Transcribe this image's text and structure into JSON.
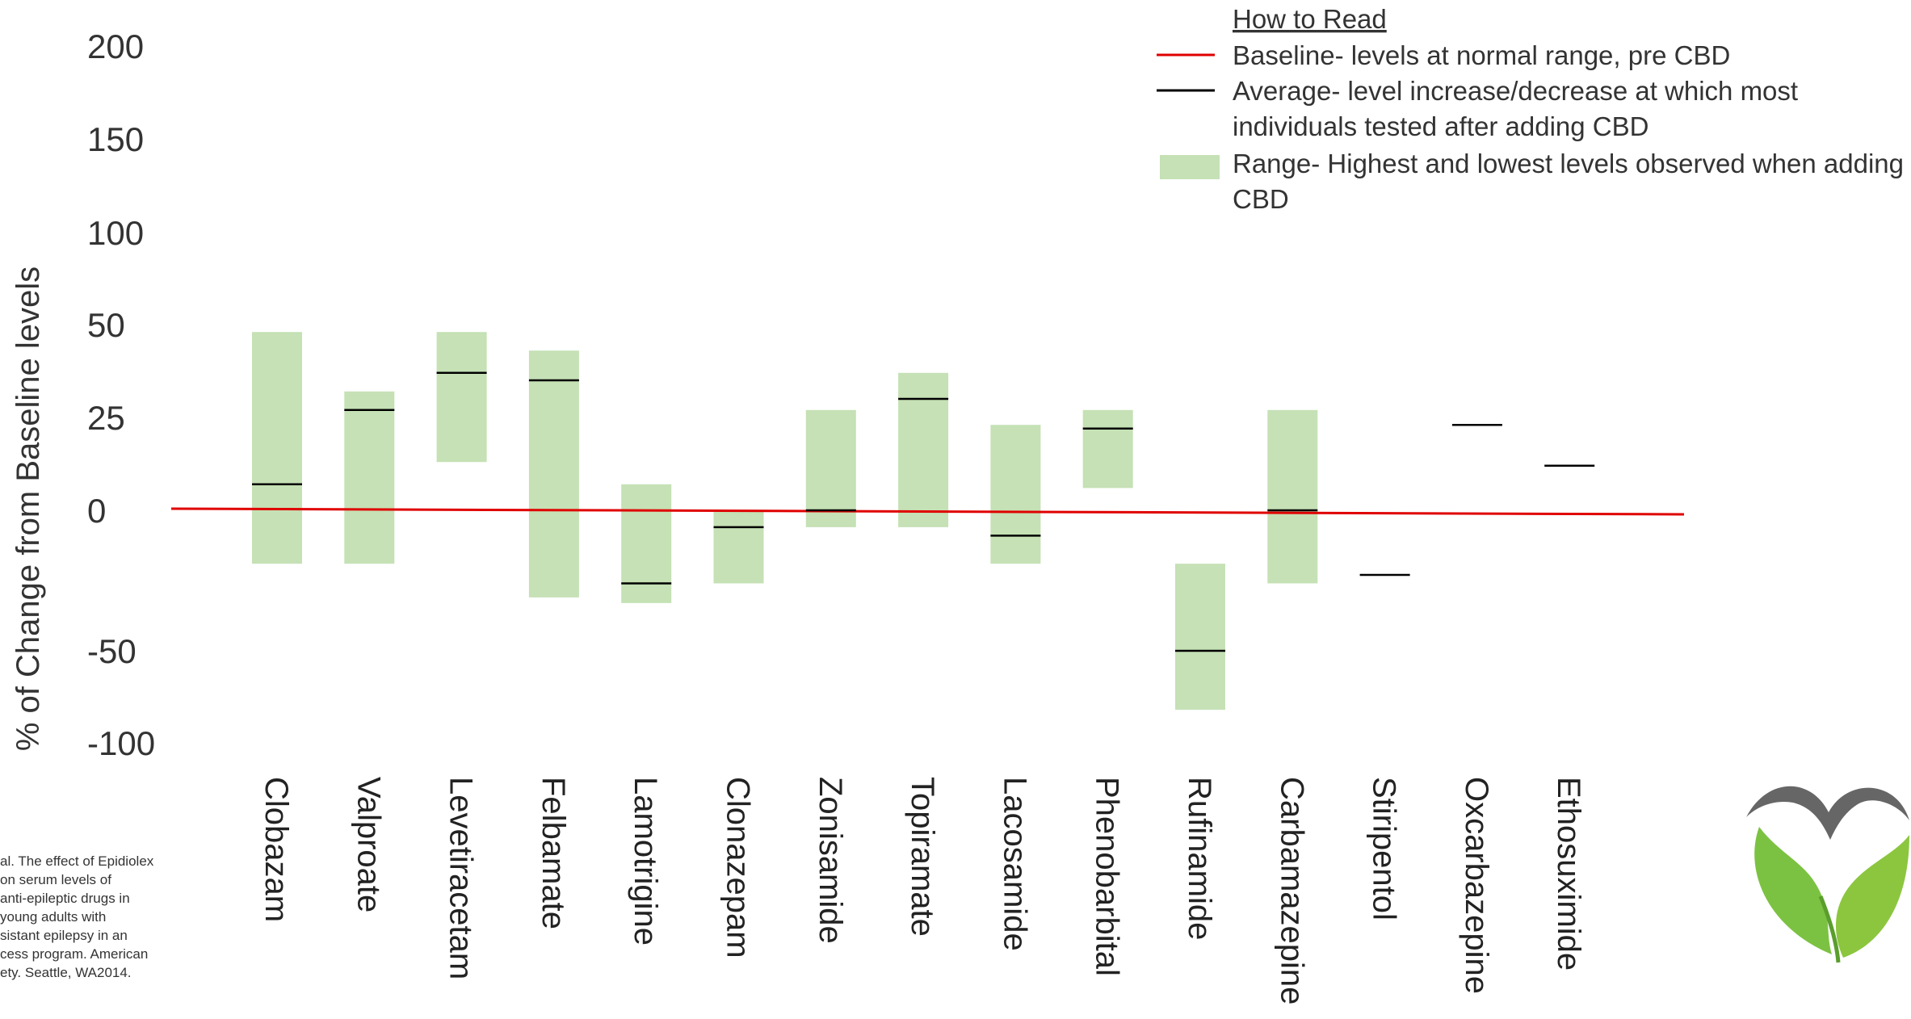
{
  "chart_data": {
    "type": "bar",
    "ylabel": "% of Change from Baseline levels",
    "yticks": [
      "200",
      "150",
      "100",
      "50",
      "25",
      "0",
      "-50",
      "-100"
    ],
    "baseline": 0,
    "categories": [
      "Clobazam",
      "Valproate",
      "Levetiracetam",
      "Felbamate",
      "Lamotrigine",
      "Clonazepam",
      "Zonisamide",
      "Topiramate",
      "Lacosamide",
      "Phenobarbital",
      "Rufinamide",
      "Carbamazepine",
      "Stiripentol",
      "Oxcarbazepine",
      "Ethosuximide"
    ],
    "series": [
      {
        "name": "Range- Highest and lowest levels observed when adding CBD",
        "values": [
          [
            -19,
            48
          ],
          [
            -19,
            32
          ],
          [
            13,
            48
          ],
          [
            -31,
            43
          ],
          [
            -33,
            7
          ],
          [
            -26,
            0
          ],
          [
            -6,
            27
          ],
          [
            -6,
            37
          ],
          [
            -19,
            23
          ],
          [
            6,
            27
          ],
          [
            -82,
            -19
          ],
          [
            -26,
            27
          ],
          null,
          null,
          null
        ]
      },
      {
        "name": "Average- level increase/decrease at which most individuals tested after adding CBD",
        "values": [
          7,
          27,
          37,
          35,
          -26,
          -6,
          0,
          30,
          -9,
          22,
          -50,
          0,
          -23,
          23,
          12
        ]
      }
    ],
    "colors": {
      "range": "#c5e1b5",
      "average": "#000000",
      "baseline": "#e00000"
    }
  },
  "legend": {
    "title": "How to Read",
    "baseline_line1": "Baseline- levels at normal range, pre CBD",
    "average_line1": "Average- level increase/decrease at which most",
    "average_line2": "individuals tested after adding CBD",
    "range_line1": "Range- Highest and lowest levels observed when adding",
    "range_line2": "CBD"
  },
  "citation": "al. The effect of Epidiolex\n on serum levels of\n anti-epileptic drugs in\n young adults with\nsistant epilepsy in an\ncess program. American\nety. Seattle, WA2014."
}
